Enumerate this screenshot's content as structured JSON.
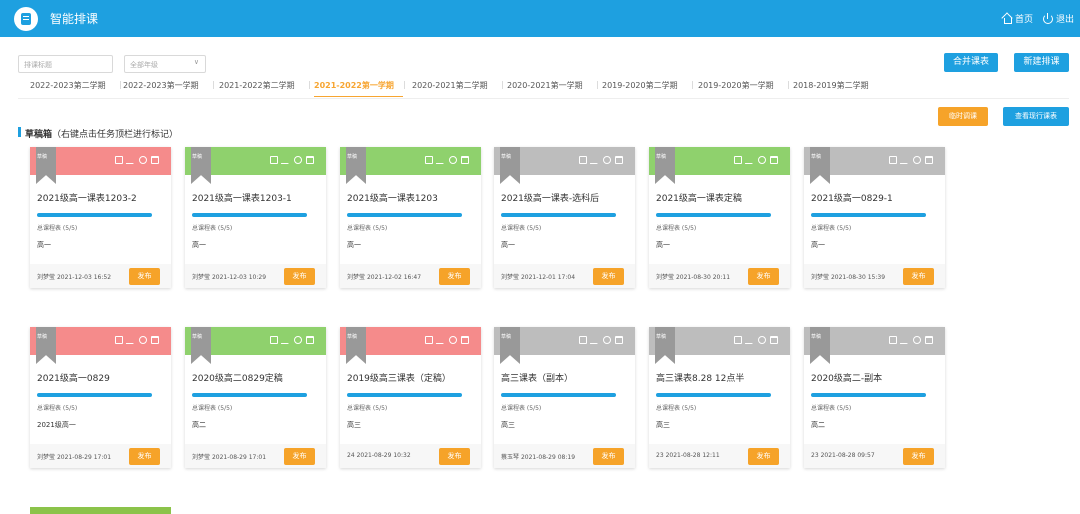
{
  "app": {
    "title": "智能排课",
    "home": "首页",
    "logout": "退出"
  },
  "filters": {
    "search_placeholder": "排课标题",
    "grade_select": "全部年级"
  },
  "actions": {
    "merge": "合并课表",
    "new": "新建排课",
    "temp_adjust": "临时调课",
    "view_current": "查看现行课表"
  },
  "semesters": [
    "2022-2023第二学期",
    "2022-2023第一学期",
    "2021-2022第二学期",
    "2021-2022第一学期",
    "2020-2021第二学期",
    "2020-2021第一学期",
    "2019-2020第二学期",
    "2019-2020第一学期",
    "2018-2019第二学期"
  ],
  "active_semester_index": 3,
  "section": {
    "title": "草稿箱",
    "hint": "（右键点击任务顶栏进行标记）"
  },
  "card_labels": {
    "ribbon": "草稿",
    "summary": "总课程表 (5/5)",
    "publish": "发布"
  },
  "colors": {
    "red": "#f58b8b",
    "green": "#8fd16d",
    "gray": "#bdbdbd",
    "blue": "#1ea0e0",
    "orange": "#f6a329"
  },
  "cards": [
    {
      "color": "red",
      "title": "2021级高一课表1203-2",
      "grade": "高一",
      "user": "刘梦莹",
      "time": "2021-12-03 16:52",
      "progress": 1
    },
    {
      "color": "green",
      "title": "2021级高一课表1203-1",
      "grade": "高一",
      "user": "刘梦莹",
      "time": "2021-12-03 10:29",
      "progress": 1
    },
    {
      "color": "green",
      "title": "2021级高一课表1203",
      "grade": "高一",
      "user": "刘梦莹",
      "time": "2021-12-02 16:47",
      "progress": 1
    },
    {
      "color": "gray",
      "title": "2021级高一课表-选科后",
      "grade": "高一",
      "user": "刘梦莹",
      "time": "2021-12-01 17:04",
      "progress": 1
    },
    {
      "color": "green",
      "title": "2021级高一课表定稿",
      "grade": "高一",
      "user": "刘梦莹",
      "time": "2021-08-30 20:11",
      "progress": 1
    },
    {
      "color": "gray",
      "title": "2021级高一0829-1",
      "grade": "高一",
      "user": "刘梦莹",
      "time": "2021-08-30 15:39",
      "progress": 1
    },
    {
      "color": "red",
      "title": "2021级高一0829",
      "grade": "2021级高一",
      "user": "刘梦莹",
      "time": "2021-08-29 17:01",
      "progress": 1
    },
    {
      "color": "green",
      "title": "2020级高二0829定稿",
      "grade": "高二",
      "user": "刘梦莹",
      "time": "2021-08-29 17:01",
      "progress": 1
    },
    {
      "color": "red",
      "title": "2019级高三课表（定稿）",
      "grade": "高三",
      "user": "24",
      "time": "2021-08-29 10:32",
      "progress": 1
    },
    {
      "color": "gray",
      "title": "高三课表（副本）",
      "grade": "高三",
      "user": "蔡玉琴",
      "time": "2021-08-29 08:19",
      "progress": 1
    },
    {
      "color": "gray",
      "title": "高三课表8.28 12点半",
      "grade": "高三",
      "user": "23",
      "time": "2021-08-28 12:11",
      "progress": 1
    },
    {
      "color": "gray",
      "title": "2020级高二-副本",
      "grade": "高二",
      "user": "23",
      "time": "2021-08-28 09:57",
      "progress": 1
    }
  ]
}
